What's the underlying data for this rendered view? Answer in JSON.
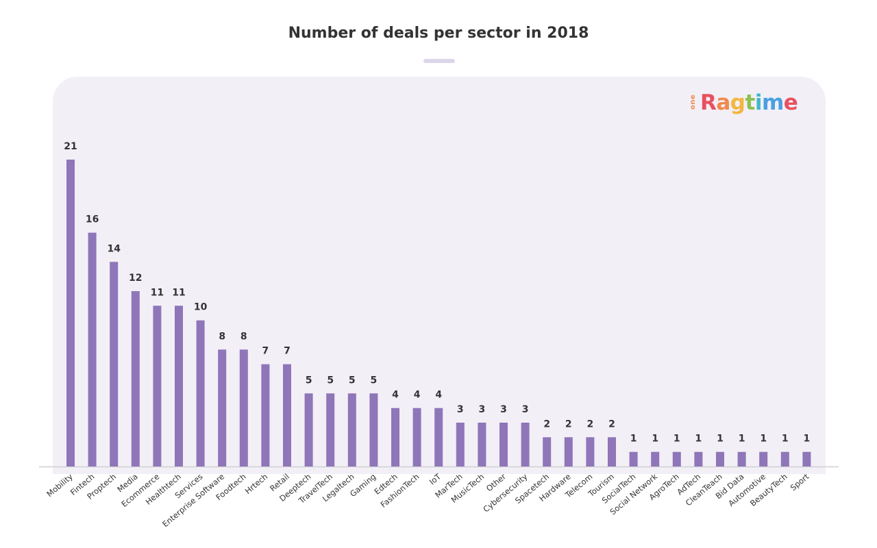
{
  "chart_data": {
    "type": "bar",
    "title": "Number of deals per sector in 2018",
    "xlabel": "",
    "ylabel": "",
    "ylim": [
      0,
      21
    ],
    "grid": false,
    "categories": [
      "Mobility",
      "Fintech",
      "Proptech",
      "Media",
      "Ecommerce",
      "Healthtech",
      "Services",
      "Enterprise Software",
      "Foodtech",
      "Hrtech",
      "Retail",
      "Deeptech",
      "TravelTech",
      "Legaltech",
      "Gaming",
      "Edtech",
      "FashionTech",
      "IoT",
      "MarTech",
      "MusicTech",
      "Other",
      "Cybersecurity",
      "Spacetech",
      "Hardware",
      "Telecom",
      "Tourism",
      "SocialTech",
      "Social Network",
      "AgroTech",
      "AdTech",
      "CleanTeach",
      "Bid Data",
      "Automotive",
      "BeautyTech",
      "Sport"
    ],
    "values": [
      21,
      16,
      14,
      12,
      11,
      11,
      10,
      8,
      8,
      7,
      7,
      5,
      5,
      5,
      5,
      4,
      4,
      4,
      3,
      3,
      3,
      3,
      2,
      2,
      2,
      2,
      1,
      1,
      1,
      1,
      1,
      1,
      1,
      1,
      1
    ],
    "colors": {
      "bar": "#8e76b8",
      "panel": "#f2eff7",
      "text": "#333333"
    }
  },
  "logo": {
    "prefix": "one",
    "word": "Ragtime",
    "colors": [
      "#e8515f",
      "#f08a4b",
      "#f4b63f",
      "#8cc152",
      "#3fb8c9",
      "#4a9fe0"
    ]
  }
}
